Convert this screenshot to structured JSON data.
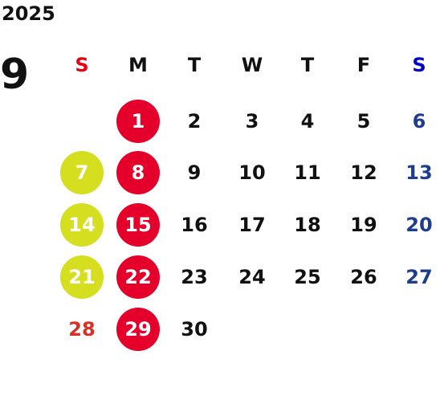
{
  "year": "2025",
  "month": "9",
  "colors": {
    "default": "#111111",
    "sunday": "#e60012",
    "saturday": "#1f3d8f",
    "holiday_text": "#d93025",
    "red_circle": "#e4002b",
    "yellow_circle": "#d6df1f",
    "circle_text": "#ffffff"
  },
  "weekdays": [
    {
      "label": "S",
      "color": "#e60012"
    },
    {
      "label": "M",
      "color": "#111111"
    },
    {
      "label": "T",
      "color": "#111111"
    },
    {
      "label": "W",
      "color": "#111111"
    },
    {
      "label": "T",
      "color": "#111111"
    },
    {
      "label": "F",
      "color": "#111111"
    },
    {
      "label": "S",
      "color": "#0000cc"
    }
  ],
  "weeks": [
    [
      null,
      {
        "day": "1",
        "mark": "red"
      },
      {
        "day": "2"
      },
      {
        "day": "3"
      },
      {
        "day": "4"
      },
      {
        "day": "5"
      },
      {
        "day": "6",
        "style": "sat"
      }
    ],
    [
      {
        "day": "7",
        "mark": "yellow"
      },
      {
        "day": "8",
        "mark": "red"
      },
      {
        "day": "9"
      },
      {
        "day": "10"
      },
      {
        "day": "11"
      },
      {
        "day": "12"
      },
      {
        "day": "13",
        "style": "sat"
      }
    ],
    [
      {
        "day": "14",
        "mark": "yellow"
      },
      {
        "day": "15",
        "mark": "red"
      },
      {
        "day": "16"
      },
      {
        "day": "17"
      },
      {
        "day": "18"
      },
      {
        "day": "19"
      },
      {
        "day": "20",
        "style": "sat"
      }
    ],
    [
      {
        "day": "21",
        "mark": "yellow"
      },
      {
        "day": "22",
        "mark": "red"
      },
      {
        "day": "23"
      },
      {
        "day": "24"
      },
      {
        "day": "25"
      },
      {
        "day": "26"
      },
      {
        "day": "27",
        "style": "sat"
      }
    ],
    [
      {
        "day": "28",
        "style": "sun"
      },
      {
        "day": "29",
        "mark": "red"
      },
      {
        "day": "30"
      },
      null,
      null,
      null,
      null
    ]
  ]
}
